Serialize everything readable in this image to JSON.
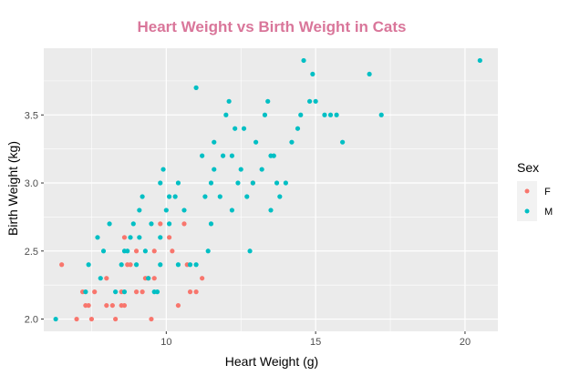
{
  "chart_data": {
    "type": "scatter",
    "title": "Heart Weight vs Birth Weight in Cats",
    "xlabel": "Heart Weight (g)",
    "ylabel": "Birth Weight (kg)",
    "xlim": [
      5.9,
      21.1
    ],
    "ylim": [
      1.91,
      3.99
    ],
    "x_ticks": [
      10,
      15,
      20
    ],
    "y_ticks": [
      2.0,
      2.5,
      3.0,
      3.5
    ],
    "x_tick_labels": [
      "10",
      "15",
      "20"
    ],
    "y_tick_labels": [
      "2.0",
      "2.5",
      "3.0",
      "3.5"
    ],
    "grid": true,
    "legend": {
      "title": "Sex",
      "position": "right"
    },
    "colors": {
      "F": "#f8766d",
      "M": "#00bfc4",
      "panel": "#ebebeb",
      "grid": "#ffffff",
      "title": "#d9769a"
    },
    "series": [
      {
        "name": "F",
        "points": [
          [
            6.5,
            2.4
          ],
          [
            7.0,
            2.0
          ],
          [
            7.2,
            2.2
          ],
          [
            7.3,
            2.1
          ],
          [
            7.4,
            2.1
          ],
          [
            7.5,
            2.0
          ],
          [
            7.6,
            2.2
          ],
          [
            8.0,
            2.1
          ],
          [
            8.0,
            2.3
          ],
          [
            8.2,
            2.1
          ],
          [
            8.3,
            2.0
          ],
          [
            8.5,
            2.1
          ],
          [
            8.6,
            2.1
          ],
          [
            8.5,
            2.2
          ],
          [
            8.7,
            2.4
          ],
          [
            8.6,
            2.6
          ],
          [
            8.8,
            2.4
          ],
          [
            9.0,
            2.5
          ],
          [
            9.0,
            2.2
          ],
          [
            9.2,
            2.2
          ],
          [
            9.3,
            2.3
          ],
          [
            9.4,
            2.3
          ],
          [
            9.5,
            2.0
          ],
          [
            9.6,
            2.3
          ],
          [
            9.6,
            2.5
          ],
          [
            9.8,
            2.7
          ],
          [
            10.1,
            2.6
          ],
          [
            10.2,
            2.5
          ],
          [
            10.4,
            2.1
          ],
          [
            10.6,
            2.7
          ],
          [
            10.7,
            2.4
          ],
          [
            10.8,
            2.2
          ],
          [
            11.0,
            2.2
          ],
          [
            11.2,
            2.3
          ],
          [
            12.9,
            3.0
          ]
        ]
      },
      {
        "name": "M",
        "points": [
          [
            6.3,
            2.0
          ],
          [
            7.3,
            2.2
          ],
          [
            7.4,
            2.4
          ],
          [
            7.7,
            2.6
          ],
          [
            7.8,
            2.3
          ],
          [
            7.9,
            2.5
          ],
          [
            8.1,
            2.7
          ],
          [
            8.3,
            2.2
          ],
          [
            8.5,
            2.4
          ],
          [
            8.6,
            2.2
          ],
          [
            8.6,
            2.5
          ],
          [
            8.7,
            2.5
          ],
          [
            8.8,
            2.6
          ],
          [
            8.9,
            2.7
          ],
          [
            9.0,
            2.4
          ],
          [
            9.1,
            2.6
          ],
          [
            9.1,
            2.8
          ],
          [
            9.2,
            2.9
          ],
          [
            9.3,
            2.5
          ],
          [
            9.4,
            2.3
          ],
          [
            9.5,
            2.7
          ],
          [
            9.6,
            2.2
          ],
          [
            9.7,
            2.2
          ],
          [
            9.8,
            2.4
          ],
          [
            9.8,
            2.6
          ],
          [
            9.8,
            3.0
          ],
          [
            9.9,
            3.1
          ],
          [
            10.0,
            2.8
          ],
          [
            10.1,
            2.7
          ],
          [
            10.1,
            2.9
          ],
          [
            10.3,
            2.9
          ],
          [
            10.4,
            3.0
          ],
          [
            10.4,
            2.4
          ],
          [
            10.6,
            2.8
          ],
          [
            10.8,
            2.4
          ],
          [
            11.0,
            2.4
          ],
          [
            11.0,
            3.7
          ],
          [
            11.2,
            3.2
          ],
          [
            11.3,
            2.9
          ],
          [
            11.4,
            2.5
          ],
          [
            11.5,
            2.7
          ],
          [
            11.5,
            3.0
          ],
          [
            11.6,
            3.3
          ],
          [
            11.6,
            3.1
          ],
          [
            11.8,
            2.9
          ],
          [
            11.9,
            3.2
          ],
          [
            12.0,
            3.5
          ],
          [
            12.1,
            3.6
          ],
          [
            12.2,
            2.8
          ],
          [
            12.2,
            3.2
          ],
          [
            12.3,
            3.4
          ],
          [
            12.4,
            3.0
          ],
          [
            12.5,
            3.1
          ],
          [
            12.6,
            3.4
          ],
          [
            12.7,
            2.9
          ],
          [
            12.8,
            2.5
          ],
          [
            12.9,
            3.0
          ],
          [
            13.0,
            3.3
          ],
          [
            13.2,
            3.1
          ],
          [
            13.3,
            3.5
          ],
          [
            13.4,
            3.6
          ],
          [
            13.5,
            2.8
          ],
          [
            13.5,
            3.2
          ],
          [
            13.6,
            3.2
          ],
          [
            13.7,
            3.0
          ],
          [
            13.8,
            2.9
          ],
          [
            14.0,
            3.0
          ],
          [
            14.2,
            3.3
          ],
          [
            14.4,
            3.4
          ],
          [
            14.5,
            3.5
          ],
          [
            14.6,
            3.9
          ],
          [
            14.8,
            3.6
          ],
          [
            14.9,
            3.8
          ],
          [
            15.0,
            3.6
          ],
          [
            15.3,
            3.5
          ],
          [
            15.5,
            3.5
          ],
          [
            15.7,
            3.5
          ],
          [
            15.9,
            3.3
          ],
          [
            16.8,
            3.8
          ],
          [
            17.2,
            3.5
          ],
          [
            20.5,
            3.9
          ]
        ]
      }
    ]
  }
}
